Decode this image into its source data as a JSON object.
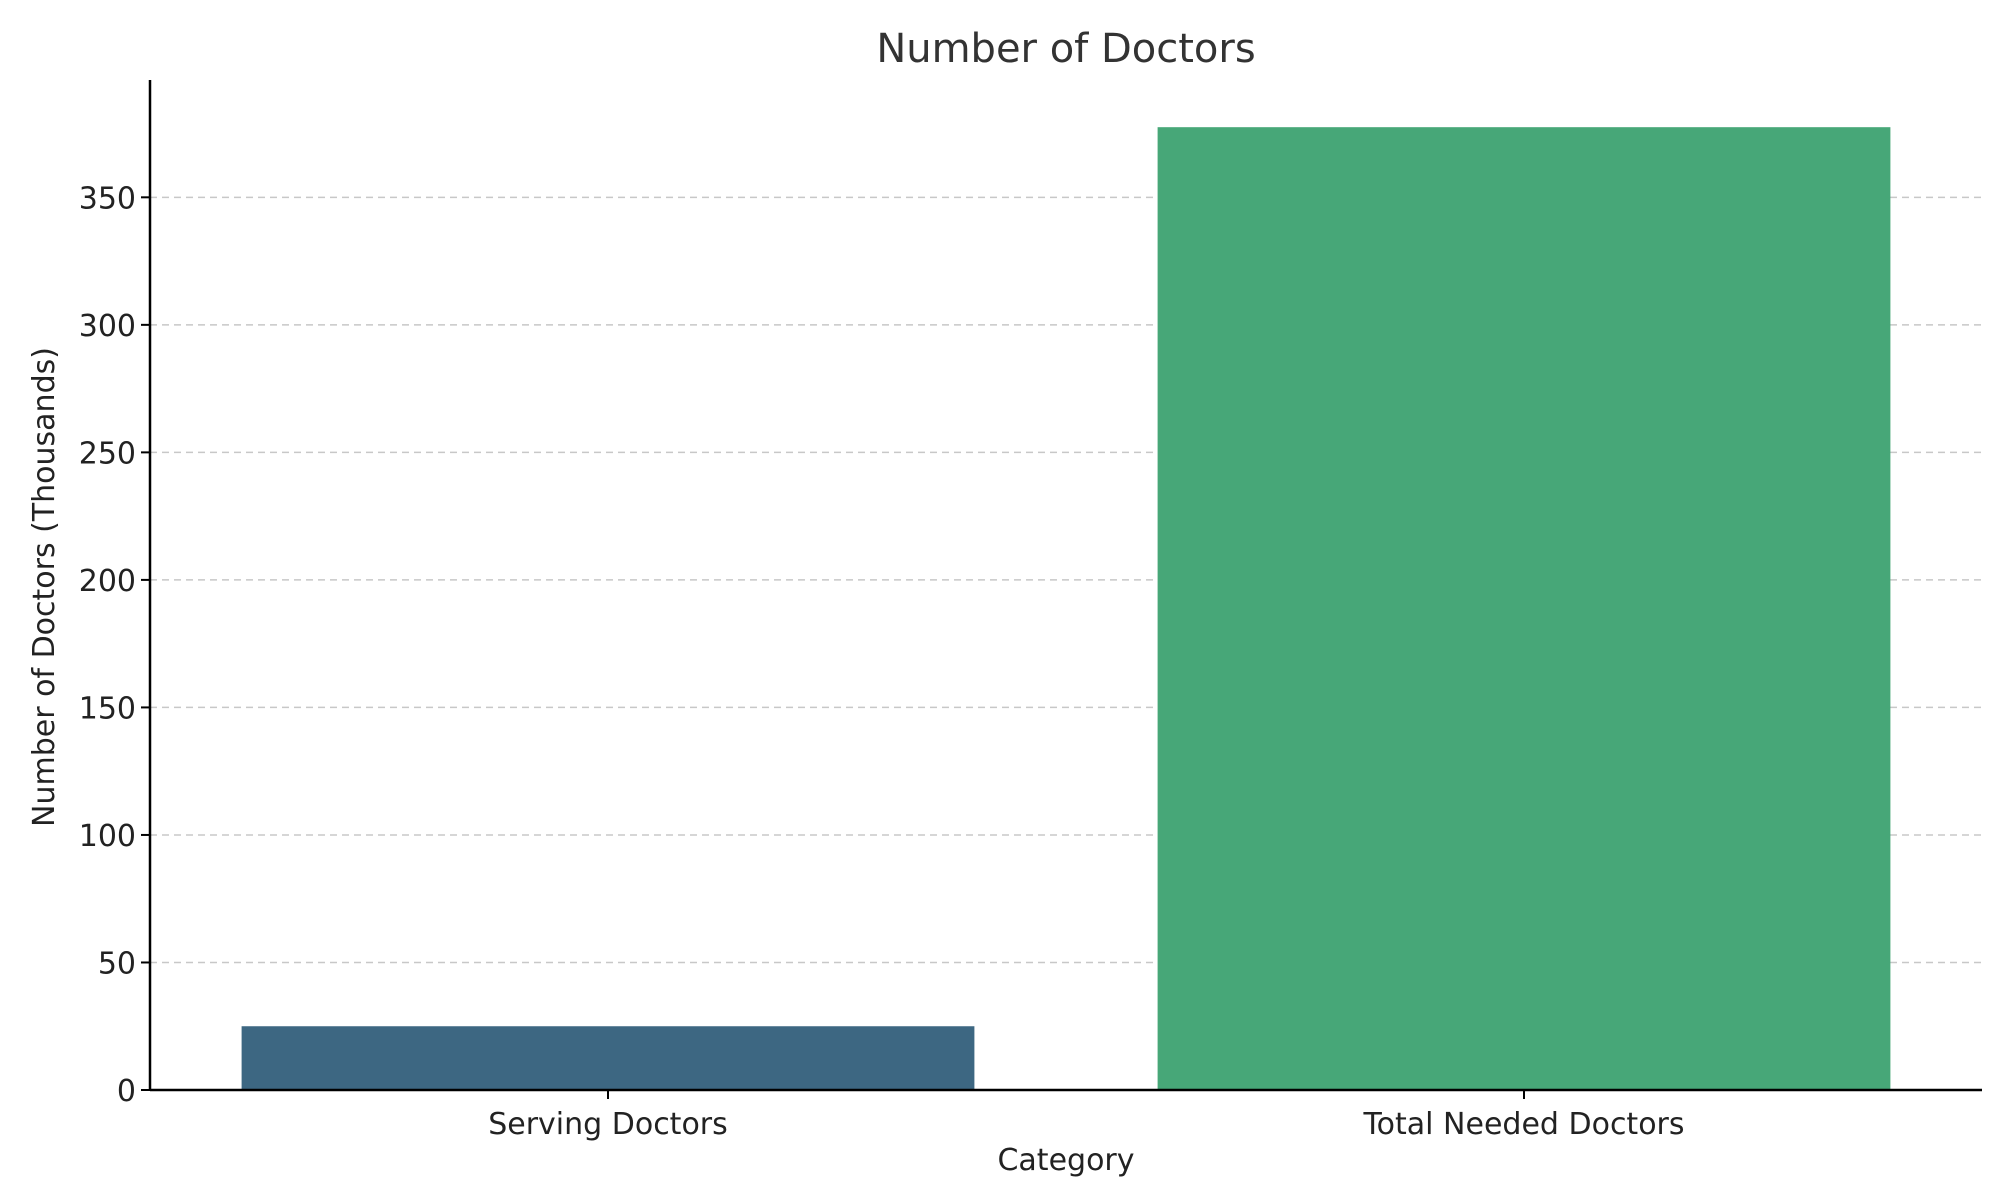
{
  "chart_data": {
    "type": "bar",
    "title": "Number of Doctors",
    "xlabel": "Category",
    "ylabel": "Number of Doctors (Thousands)",
    "categories": [
      "Serving Doctors",
      "Total Needed Doctors"
    ],
    "values": [
      25,
      377.5
    ],
    "colors": [
      "#3d6782",
      "#47a778"
    ],
    "ylim": [
      0,
      396
    ],
    "yticks": [
      0,
      50,
      100,
      150,
      200,
      250,
      300,
      350
    ],
    "grid": "y-dashed",
    "legend": "none"
  }
}
